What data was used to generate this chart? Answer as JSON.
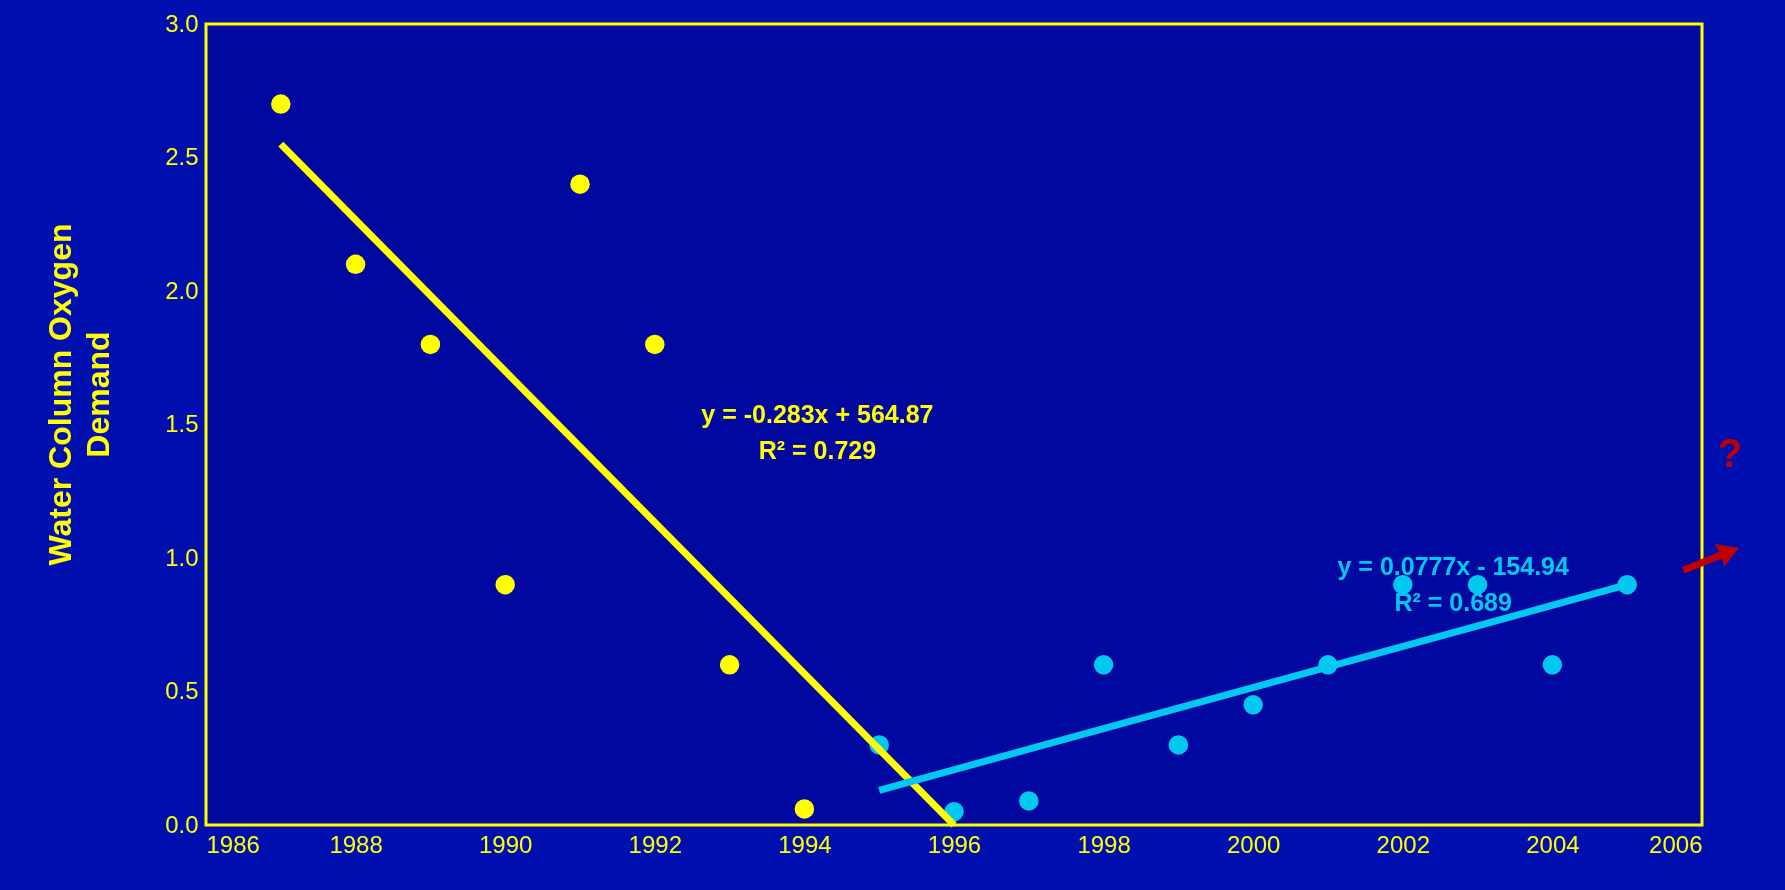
{
  "chart_data": {
    "type": "scatter",
    "ylabel": "Water Column Oxygen\nDemand",
    "xlim": [
      1986,
      2006
    ],
    "xticks": [
      1986,
      1988,
      1990,
      1992,
      1994,
      1996,
      1998,
      2000,
      2002,
      2004,
      2006
    ],
    "ylim": [
      0,
      3
    ],
    "yticks": [
      {
        "value": 0,
        "label": "0.0"
      },
      {
        "value": 0.5,
        "label": "0.5"
      },
      {
        "value": 1,
        "label": "1.0"
      },
      {
        "value": 1.5,
        "label": "1.5"
      },
      {
        "value": 2,
        "label": "2.0"
      },
      {
        "value": 2.5,
        "label": "2.5"
      },
      {
        "value": 3,
        "label": "3.0"
      }
    ],
    "grid": false,
    "legend": false,
    "marker": "circle",
    "series": [
      {
        "color": "#ffff00",
        "x": [
          1987,
          1988,
          1989,
          1990,
          1991,
          1992,
          1993,
          1994
        ],
        "values": [
          2.7,
          2.1,
          1.8,
          0.9,
          2.4,
          1.8,
          0.6,
          0.06
        ]
      },
      {
        "color": "#00c8f0",
        "x": [
          1995,
          1996,
          1997,
          1998,
          1999,
          2000,
          2001,
          2002,
          2003,
          2004,
          2005
        ],
        "values": [
          0.3,
          0.05,
          0.09,
          0.6,
          0.3,
          0.45,
          0.6,
          0.9,
          0.9,
          0.6,
          0.9
        ]
      },
      {
        "type": "line",
        "marker": "none",
        "name": "y = -0.283x + 564.87\nR² = 0.729",
        "color": "#ffff00",
        "x": [
          1987,
          1996
        ],
        "values": [
          2.55,
          0.0
        ]
      },
      {
        "type": "line",
        "marker": "none",
        "name": "y = 0.0777x - 154.94\nR² = 0.689",
        "color": "#00c8f0",
        "x": [
          1995,
          2005
        ],
        "values": [
          0.13,
          0.9
        ]
      }
    ],
    "annotations": [
      "?"
    ]
  }
}
